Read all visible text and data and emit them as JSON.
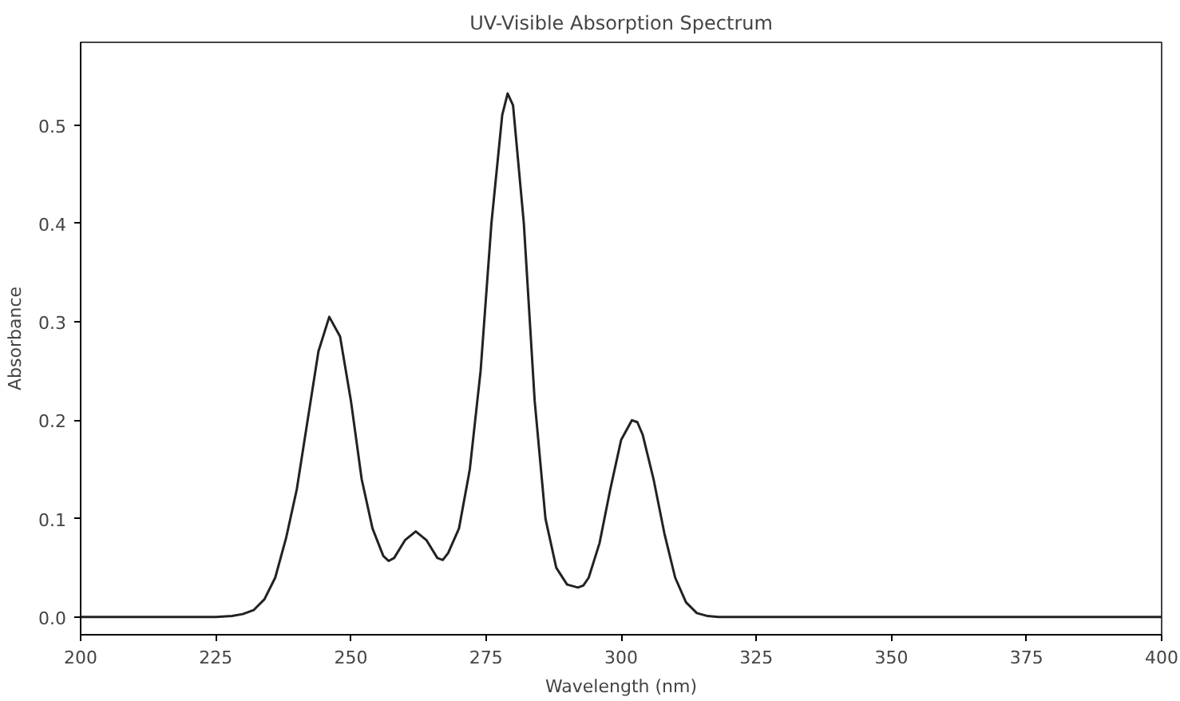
{
  "chart_data": {
    "type": "line",
    "title": "UV-Visible Absorption Spectrum",
    "xlabel": "Wavelength (nm)",
    "ylabel": "Absorbance",
    "x": [
      200,
      210,
      220,
      225,
      228,
      230,
      232,
      234,
      236,
      238,
      240,
      242,
      244,
      246,
      248,
      250,
      252,
      254,
      256,
      257,
      258,
      260,
      262,
      264,
      266,
      267,
      268,
      270,
      272,
      274,
      276,
      278,
      279,
      280,
      282,
      284,
      286,
      288,
      290,
      292,
      293,
      294,
      296,
      298,
      300,
      302,
      303,
      304,
      306,
      308,
      310,
      312,
      314,
      316,
      318,
      330,
      350,
      375,
      400
    ],
    "series": [
      {
        "color": "#222222",
        "values": [
          0,
          0,
          0,
          0,
          0.001,
          0.003,
          0.007,
          0.018,
          0.04,
          0.08,
          0.13,
          0.2,
          0.27,
          0.305,
          0.285,
          0.22,
          0.14,
          0.09,
          0.062,
          0.057,
          0.06,
          0.078,
          0.087,
          0.078,
          0.06,
          0.058,
          0.065,
          0.09,
          0.15,
          0.25,
          0.4,
          0.51,
          0.532,
          0.52,
          0.4,
          0.22,
          0.1,
          0.05,
          0.033,
          0.03,
          0.032,
          0.04,
          0.075,
          0.13,
          0.18,
          0.2,
          0.198,
          0.185,
          0.14,
          0.085,
          0.04,
          0.015,
          0.004,
          0.001,
          0,
          0,
          0,
          0,
          0
        ]
      }
    ],
    "xlim": [
      200,
      400
    ],
    "ylim": [
      -0.018,
      0.584
    ],
    "xticks": [
      200,
      225,
      250,
      275,
      300,
      325,
      350,
      375,
      400
    ],
    "yticks": [
      {
        "value": 0,
        "label": "0.0"
      },
      0.1,
      0.2,
      0.3,
      0.4,
      0.5
    ],
    "grid": false,
    "marker": "none",
    "line_style": "solid"
  }
}
